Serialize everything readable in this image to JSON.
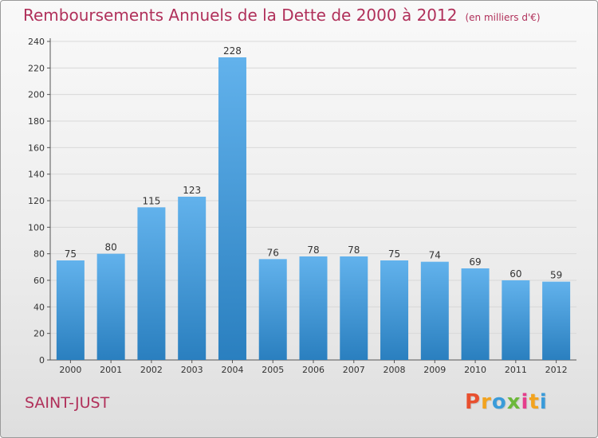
{
  "header": {
    "title": "Remboursements Annuels de la Dette de 2000 à 2012",
    "unit": "(en milliers d'€)"
  },
  "footer": {
    "commune": "SAINT-JUST",
    "brand": "Proxiti",
    "brand_letters": [
      "P",
      "r",
      "o",
      "x",
      "i",
      "t",
      "i"
    ],
    "brand_colors": [
      "#e8502f",
      "#f2a31f",
      "#3a9bd9",
      "#6cb83a",
      "#e53e8c",
      "#f2a31f",
      "#3a9bd9"
    ]
  },
  "colors": {
    "bar_top": "#62b2ec",
    "bar_bottom": "#2a7fbf",
    "title": "#b0305a",
    "grid": "#d8d8d8"
  },
  "chart_data": {
    "type": "bar",
    "title": "Remboursements Annuels de la Dette de 2000 à 2012",
    "xlabel": "",
    "ylabel": "",
    "categories": [
      "2000",
      "2001",
      "2002",
      "2003",
      "2004",
      "2005",
      "2006",
      "2007",
      "2008",
      "2009",
      "2010",
      "2011",
      "2012"
    ],
    "values": [
      75,
      80,
      115,
      123,
      228,
      76,
      78,
      78,
      75,
      74,
      69,
      60,
      59
    ],
    "ylim": [
      0,
      240
    ],
    "yticks": [
      0,
      20,
      40,
      60,
      80,
      100,
      120,
      140,
      160,
      180,
      200,
      220,
      240
    ],
    "grid": true,
    "data_labels": true
  }
}
